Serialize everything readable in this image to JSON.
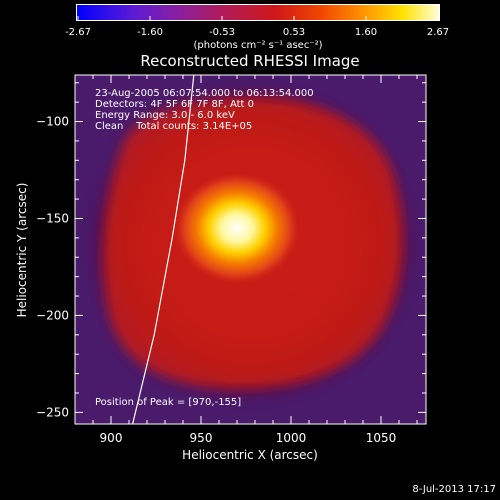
{
  "chart_data": {
    "type": "heatmap",
    "title": "Reconstructed RHESSI Image",
    "xlabel": "Heliocentric X (arcsec)",
    "ylabel": "Heliocentric Y (arcsec)",
    "xlim": [
      880,
      1075
    ],
    "ylim": [
      -256,
      -76
    ],
    "x_ticks": [
      900,
      950,
      1000,
      1050
    ],
    "y_ticks": [
      -100,
      -150,
      -200,
      -250
    ],
    "colorbar": {
      "ticks": [
        "-2.67",
        "-1.60",
        "-0.53",
        "0.53",
        "1.60",
        "2.67"
      ],
      "units": "(photons cm⁻² s⁻¹ asec⁻²)",
      "range": [
        -2.67,
        2.67
      ],
      "colormap": "blue-purple-red-yellow-white"
    },
    "annotations": {
      "time": "23-Aug-2005 06:07:54.000 to 06:13:54.000",
      "detectors": "Detectors: 4F 5F 6F 7F 8F, Att 0",
      "energy": "Energy Range: 3.0 - 6.0 keV",
      "clean": "Clean    Total counts: 3.14E+05",
      "peak": "Position of Peak = [970,-155]"
    },
    "peak": {
      "x": 970,
      "y": -155
    },
    "limb_curve": [
      [
        912,
        -256
      ],
      [
        924,
        -210
      ],
      [
        934,
        -160
      ],
      [
        941,
        -120
      ],
      [
        946,
        -76
      ]
    ]
  },
  "footer": {
    "stamp": "8-Jul-2013 17:17"
  }
}
